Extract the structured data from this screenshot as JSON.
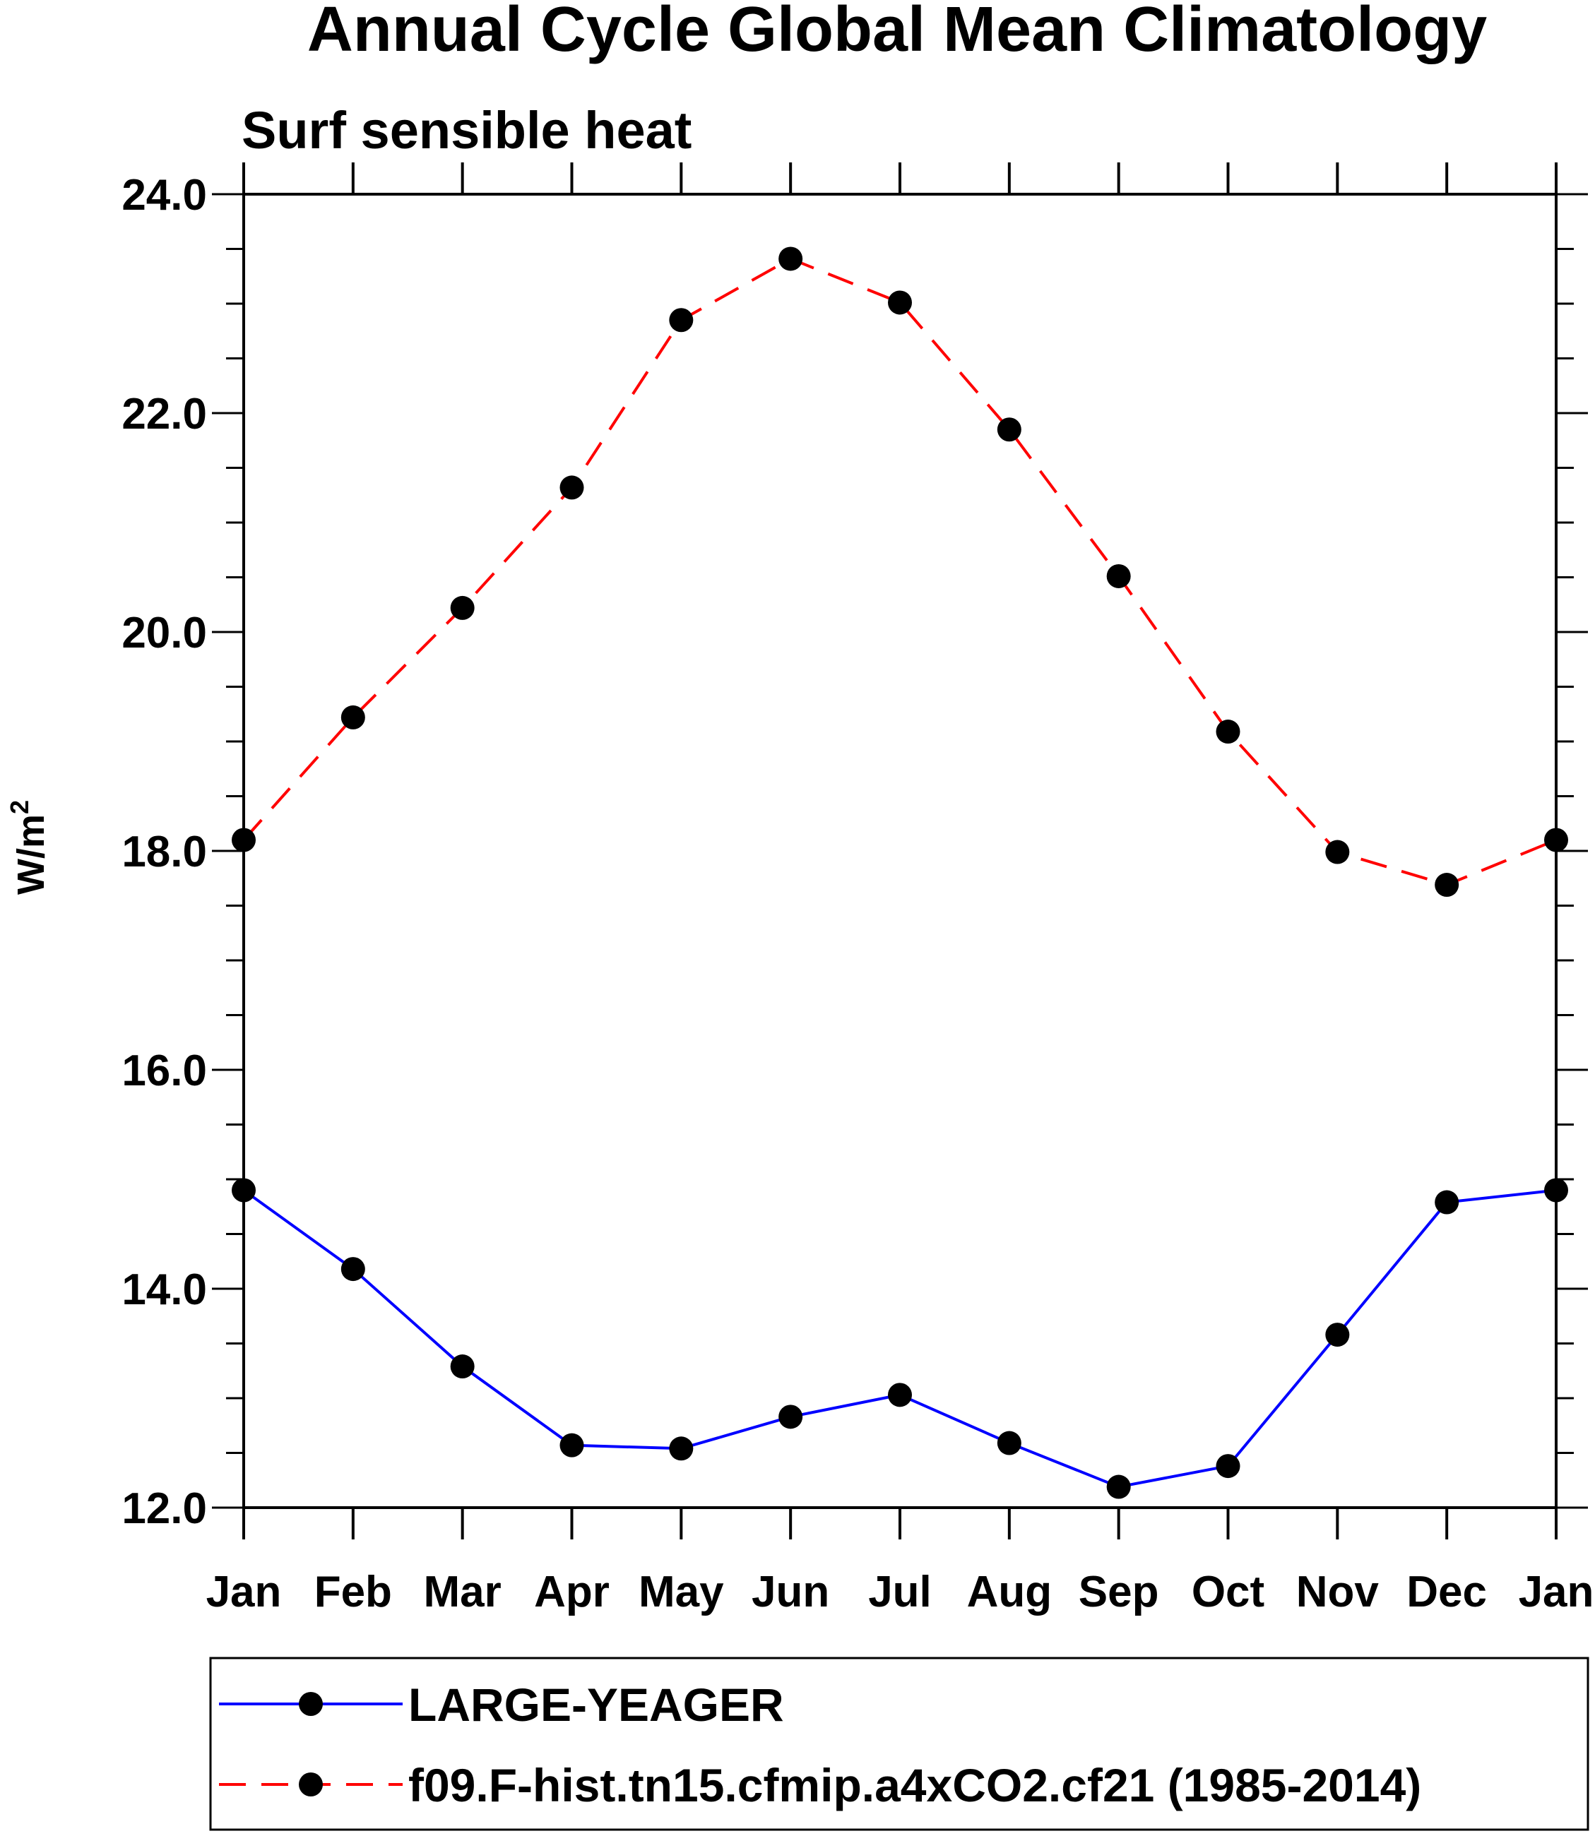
{
  "chart_data": {
    "type": "line",
    "title": "Annual Cycle Global Mean Climatology",
    "subtitle": "Surf sensible heat",
    "xlabel": "",
    "ylabel": "W/m",
    "ylabel_sup": "2",
    "categories": [
      "Jan",
      "Feb",
      "Mar",
      "Apr",
      "May",
      "Jun",
      "Jul",
      "Aug",
      "Sep",
      "Oct",
      "Nov",
      "Dec",
      "Jan"
    ],
    "ylim": [
      12.0,
      24.0
    ],
    "yticks": [
      "24.0",
      "22.0",
      "20.0",
      "18.0",
      "16.0",
      "14.0",
      "12.0"
    ],
    "ytick_values": [
      24,
      22,
      20,
      18,
      16,
      14,
      12
    ],
    "legend_position": "bottom",
    "series": [
      {
        "name": "LARGE-YEAGER",
        "color": "#0000ff",
        "style": "solid",
        "values": [
          14.9,
          14.18,
          13.29,
          12.57,
          12.54,
          12.83,
          13.03,
          12.59,
          12.19,
          12.38,
          13.58,
          14.79,
          14.9
        ]
      },
      {
        "name": "f09.F-hist.tn15.cfmip.a4xCO2.cf21 (1985-2014)",
        "color": "#ff0000",
        "style": "dashed",
        "values": [
          18.1,
          19.22,
          20.22,
          21.32,
          22.85,
          23.41,
          23.01,
          21.85,
          20.51,
          19.09,
          17.99,
          17.69,
          18.1
        ]
      }
    ]
  }
}
